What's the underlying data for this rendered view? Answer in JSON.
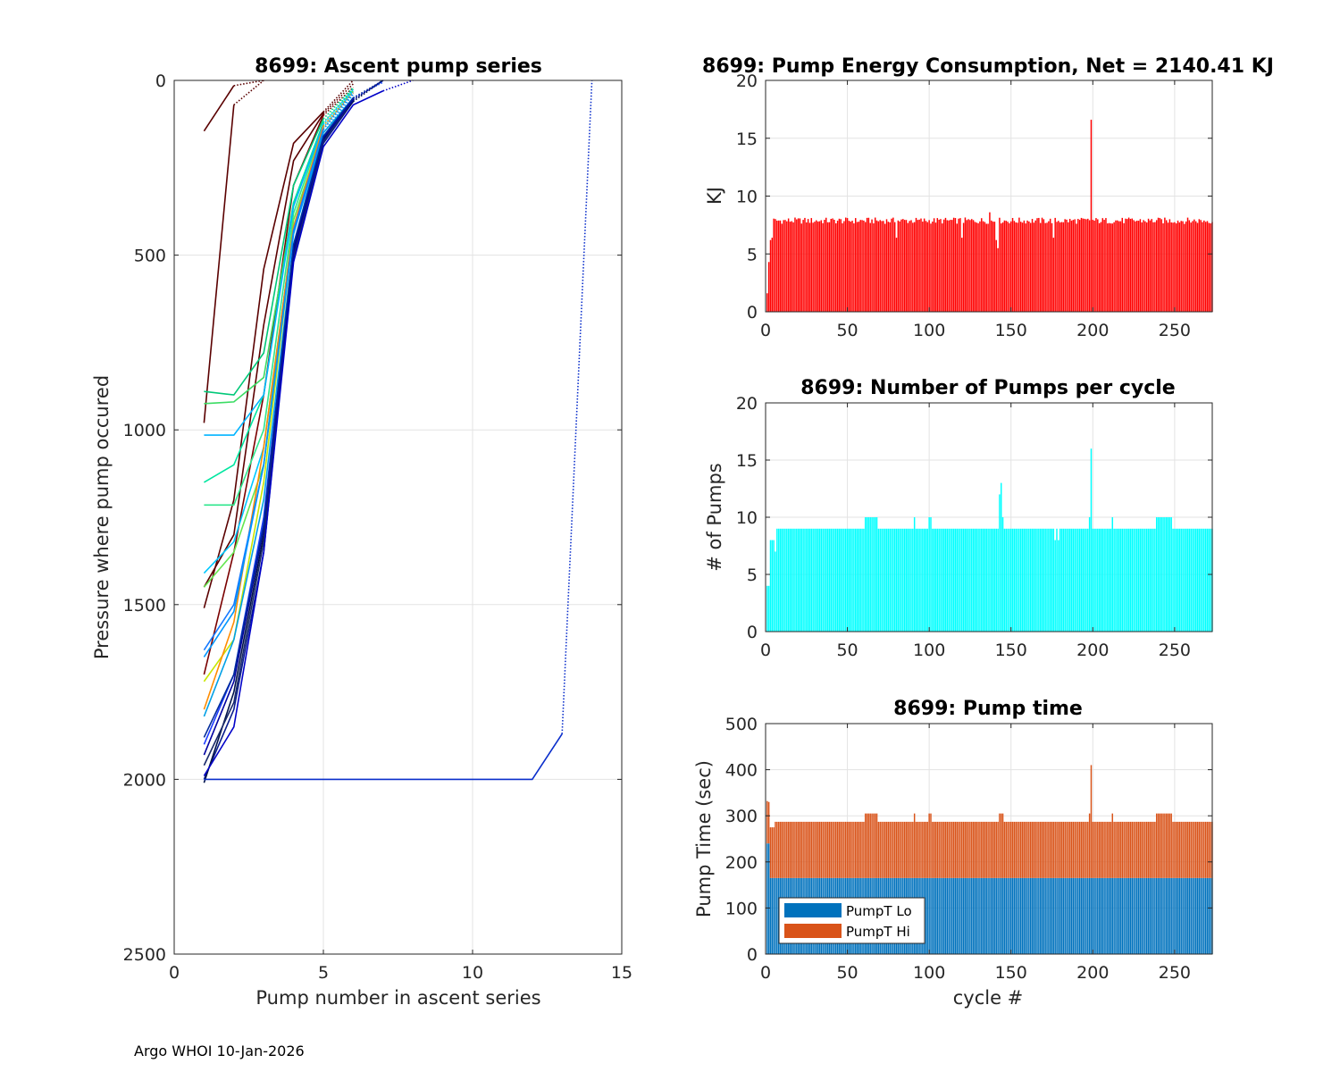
{
  "footer": "Argo WHOI 10-Jan-2026",
  "chart_data": [
    {
      "id": "ascent",
      "type": "line",
      "title": "8699: Ascent pump series",
      "xlabel": "Pump number in ascent series",
      "ylabel": "Pressure where pump occured",
      "xlim": [
        0,
        15
      ],
      "ylim": [
        0,
        2500
      ],
      "y_reversed": true,
      "xticks": [
        0,
        5,
        10,
        15
      ],
      "yticks": [
        0,
        500,
        1000,
        1500,
        2000,
        2500
      ],
      "grid": true,
      "series": [
        {
          "color": "#5a0000",
          "x": [
            1,
            2,
            3,
            4,
            5,
            6
          ],
          "y": [
            1510,
            1200,
            540,
            180,
            90,
            0
          ]
        },
        {
          "color": "#5a0000",
          "x": [
            1,
            2,
            3,
            4,
            5,
            6
          ],
          "y": [
            1450,
            1300,
            700,
            230,
            95,
            10
          ]
        },
        {
          "color": "#5a0000",
          "x": [
            1,
            2,
            3
          ],
          "y": [
            980,
            70,
            0
          ]
        },
        {
          "color": "#5a0000",
          "x": [
            1,
            2,
            3
          ],
          "y": [
            145,
            15,
            0
          ]
        },
        {
          "color": "#7a0000",
          "x": [
            1,
            2,
            3,
            4,
            5,
            6
          ],
          "y": [
            1700,
            1350,
            900,
            300,
            100,
            20
          ]
        },
        {
          "color": "#00c878",
          "x": [
            1,
            2,
            3,
            4,
            5,
            6
          ],
          "y": [
            890,
            900,
            780,
            300,
            110,
            20
          ]
        },
        {
          "color": "#3cdc64",
          "x": [
            1,
            2,
            3,
            4,
            5,
            6
          ],
          "y": [
            925,
            920,
            850,
            350,
            120,
            25
          ]
        },
        {
          "color": "#00e6a0",
          "x": [
            1,
            2,
            3,
            4,
            5,
            6
          ],
          "y": [
            1150,
            1100,
            900,
            350,
            120,
            25
          ]
        },
        {
          "color": "#2ee68c",
          "x": [
            1,
            2,
            3,
            4,
            5,
            6
          ],
          "y": [
            1215,
            1215,
            1000,
            380,
            130,
            30
          ]
        },
        {
          "color": "#00b4ff",
          "x": [
            1,
            2,
            3,
            4,
            5,
            6
          ],
          "y": [
            1015,
            1015,
            900,
            360,
            125,
            25
          ]
        },
        {
          "color": "#64e650",
          "x": [
            1,
            2,
            3,
            4,
            5,
            6
          ],
          "y": [
            1450,
            1350,
            1100,
            400,
            140,
            30
          ]
        },
        {
          "color": "#00c8ff",
          "x": [
            1,
            2,
            3,
            4,
            5,
            6
          ],
          "y": [
            1410,
            1320,
            1050,
            420,
            135,
            30
          ]
        },
        {
          "color": "#c8e600",
          "x": [
            1,
            2,
            3,
            4,
            5,
            6
          ],
          "y": [
            1720,
            1600,
            1150,
            430,
            140,
            35
          ]
        },
        {
          "color": "#ff8c00",
          "x": [
            1,
            2,
            3,
            4,
            5,
            6
          ],
          "y": [
            1800,
            1550,
            1050,
            420,
            130,
            35
          ]
        },
        {
          "color": "#1478ff",
          "x": [
            1,
            2,
            3,
            4,
            5,
            6
          ],
          "y": [
            1630,
            1500,
            1100,
            430,
            140,
            35
          ]
        },
        {
          "color": "#0096ff",
          "x": [
            1,
            2,
            3,
            4,
            5,
            6
          ],
          "y": [
            1650,
            1520,
            1100,
            440,
            150,
            40
          ]
        },
        {
          "color": "#00a0e6",
          "x": [
            1,
            2,
            3,
            4,
            5,
            6,
            7
          ],
          "y": [
            1820,
            1600,
            1200,
            470,
            150,
            50,
            5
          ]
        },
        {
          "color": "#1e3cff",
          "x": [
            1,
            2,
            3,
            4,
            5,
            6,
            7
          ],
          "y": [
            1900,
            1700,
            1250,
            480,
            160,
            50,
            5
          ]
        },
        {
          "color": "#0a1e8c",
          "x": [
            1,
            2,
            3,
            4,
            5,
            6,
            7
          ],
          "y": [
            2000,
            1800,
            1350,
            500,
            180,
            60,
            0
          ]
        },
        {
          "color": "#00124a",
          "x": [
            1,
            2,
            3,
            4,
            5,
            6,
            7
          ],
          "y": [
            2010,
            1750,
            1300,
            480,
            170,
            60,
            0
          ]
        },
        {
          "color": "#1a2a6a",
          "x": [
            1,
            2,
            3,
            4,
            5,
            6,
            7
          ],
          "y": [
            1960,
            1780,
            1320,
            510,
            175,
            55,
            0
          ]
        },
        {
          "color": "#0000c8",
          "x": [
            1,
            2,
            3,
            4,
            5,
            6,
            7,
            8
          ],
          "y": [
            1990,
            1850,
            1350,
            520,
            190,
            70,
            30,
            0
          ]
        },
        {
          "color": "#0000a0",
          "x": [
            1,
            2,
            3,
            4,
            5,
            6,
            7
          ],
          "y": [
            1930,
            1720,
            1280,
            490,
            165,
            55,
            0
          ]
        },
        {
          "color": "#002a9a",
          "x": [
            1,
            2,
            3,
            4,
            5,
            6,
            7
          ],
          "y": [
            1880,
            1700,
            1270,
            470,
            160,
            50,
            0
          ]
        },
        {
          "color": "#0a2ecb",
          "x": [
            1,
            2,
            3,
            4,
            5,
            6,
            7,
            8,
            9,
            10,
            11,
            12,
            13,
            14
          ],
          "y": [
            2000,
            2000,
            2000,
            2000,
            2000,
            2000,
            2000,
            2000,
            2000,
            2000,
            2000,
            2000,
            1870,
            0
          ]
        }
      ]
    },
    {
      "id": "energy",
      "type": "bar",
      "title": "8699: Pump Energy Consumption,  Net = 2140.41 KJ",
      "xlabel": "",
      "ylabel": "KJ",
      "xlim": [
        0,
        273
      ],
      "ylim": [
        0,
        20
      ],
      "xticks": [
        0,
        50,
        100,
        150,
        200,
        250
      ],
      "yticks": [
        0,
        5,
        10,
        15,
        20
      ],
      "color": "#ff0000",
      "grid": true
    },
    {
      "id": "npumps",
      "type": "bar",
      "title": "8699: Number of Pumps per cycle",
      "xlabel": "",
      "ylabel": "# of Pumps",
      "xlim": [
        0,
        273
      ],
      "ylim": [
        0,
        20
      ],
      "xticks": [
        0,
        50,
        100,
        150,
        200,
        250
      ],
      "yticks": [
        0,
        5,
        10,
        15,
        20
      ],
      "color": "#00ffff",
      "grid": true
    },
    {
      "id": "pumptime",
      "type": "bar",
      "stacked": true,
      "title": "8699: Pump time",
      "xlabel": "cycle #",
      "ylabel": "Pump Time (sec)",
      "xlim": [
        0,
        273
      ],
      "ylim": [
        0,
        500
      ],
      "xticks": [
        0,
        50,
        100,
        150,
        200,
        250
      ],
      "yticks": [
        0,
        100,
        200,
        300,
        400,
        500
      ],
      "grid": true,
      "legend_position": "bottom-left",
      "series": [
        {
          "name": "PumpT Lo",
          "color": "#0072bd"
        },
        {
          "name": "PumpT Hi",
          "color": "#d95319"
        }
      ]
    }
  ]
}
